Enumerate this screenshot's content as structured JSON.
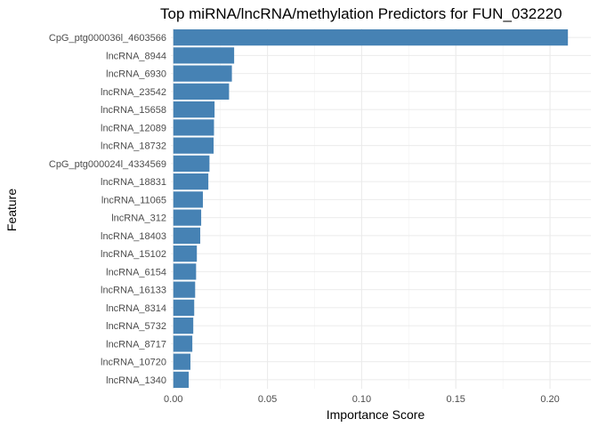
{
  "chart_data": {
    "type": "bar",
    "orientation": "horizontal",
    "title": "Top miRNA/lncRNA/methylation Predictors for FUN_032220",
    "xlabel": "Importance Score",
    "ylabel": "Feature",
    "xlim": [
      -0.0013,
      0.2217
    ],
    "x_ticks": [
      0.0,
      0.05,
      0.1,
      0.15,
      0.2
    ],
    "x_tick_labels": [
      "0.00",
      "0.05",
      "0.10",
      "0.15",
      "0.20"
    ],
    "grid": true,
    "bar_color": "#4682B4",
    "categories": [
      "CpG_ptg000036l_4603566",
      "lncRNA_8944",
      "lncRNA_6930",
      "lncRNA_23542",
      "lncRNA_15658",
      "lncRNA_12089",
      "lncRNA_18732",
      "CpG_ptg000024l_4334569",
      "lncRNA_18831",
      "lncRNA_11065",
      "lncRNA_312",
      "lncRNA_18403",
      "lncRNA_15102",
      "lncRNA_6154",
      "lncRNA_16133",
      "lncRNA_8314",
      "lncRNA_5732",
      "lncRNA_8717",
      "lncRNA_10720",
      "lncRNA_1340"
    ],
    "values": [
      0.2095,
      0.0323,
      0.0311,
      0.0296,
      0.0219,
      0.0216,
      0.0214,
      0.0192,
      0.0186,
      0.0157,
      0.0148,
      0.0143,
      0.0125,
      0.0121,
      0.0116,
      0.0111,
      0.0106,
      0.0101,
      0.0091,
      0.0082
    ]
  }
}
